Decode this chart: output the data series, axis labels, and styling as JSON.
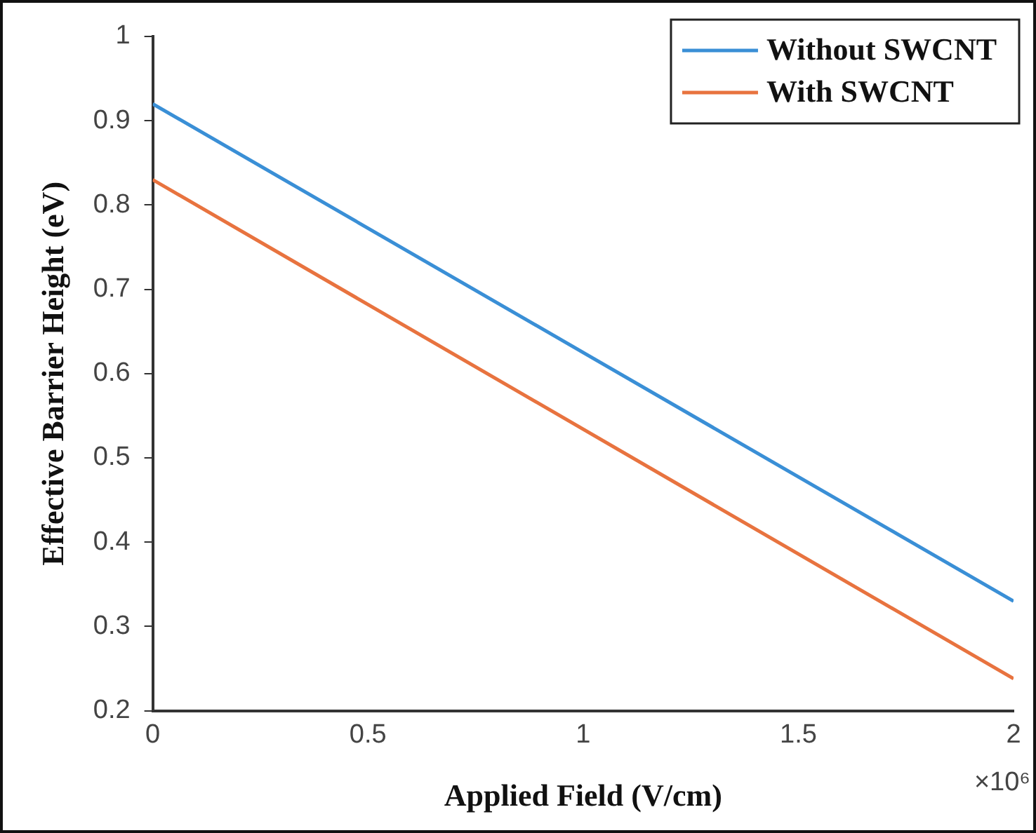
{
  "chart_data": {
    "type": "line",
    "xlabel": "Applied Field (V/cm)",
    "ylabel": "Effective Barrier Height (eV)",
    "x": [
      0,
      2
    ],
    "series": [
      {
        "name": "Without SWCNT",
        "color": "#3a8fd6",
        "values": [
          0.92,
          0.33
        ]
      },
      {
        "name": "With SWCNT",
        "color": "#e8733f",
        "values": [
          0.83,
          0.238
        ]
      }
    ],
    "xlim": [
      0,
      2
    ],
    "xticks": [
      0,
      0.5,
      1,
      1.5,
      2
    ],
    "ylim": [
      0.2,
      1
    ],
    "yticks": [
      0.2,
      0.3,
      0.4,
      0.5,
      0.6,
      0.7,
      0.8,
      0.9,
      1
    ],
    "grid": false,
    "legend": "top right",
    "marker": "none",
    "line_style": "solid",
    "annotations": [
      "×10⁶"
    ]
  }
}
